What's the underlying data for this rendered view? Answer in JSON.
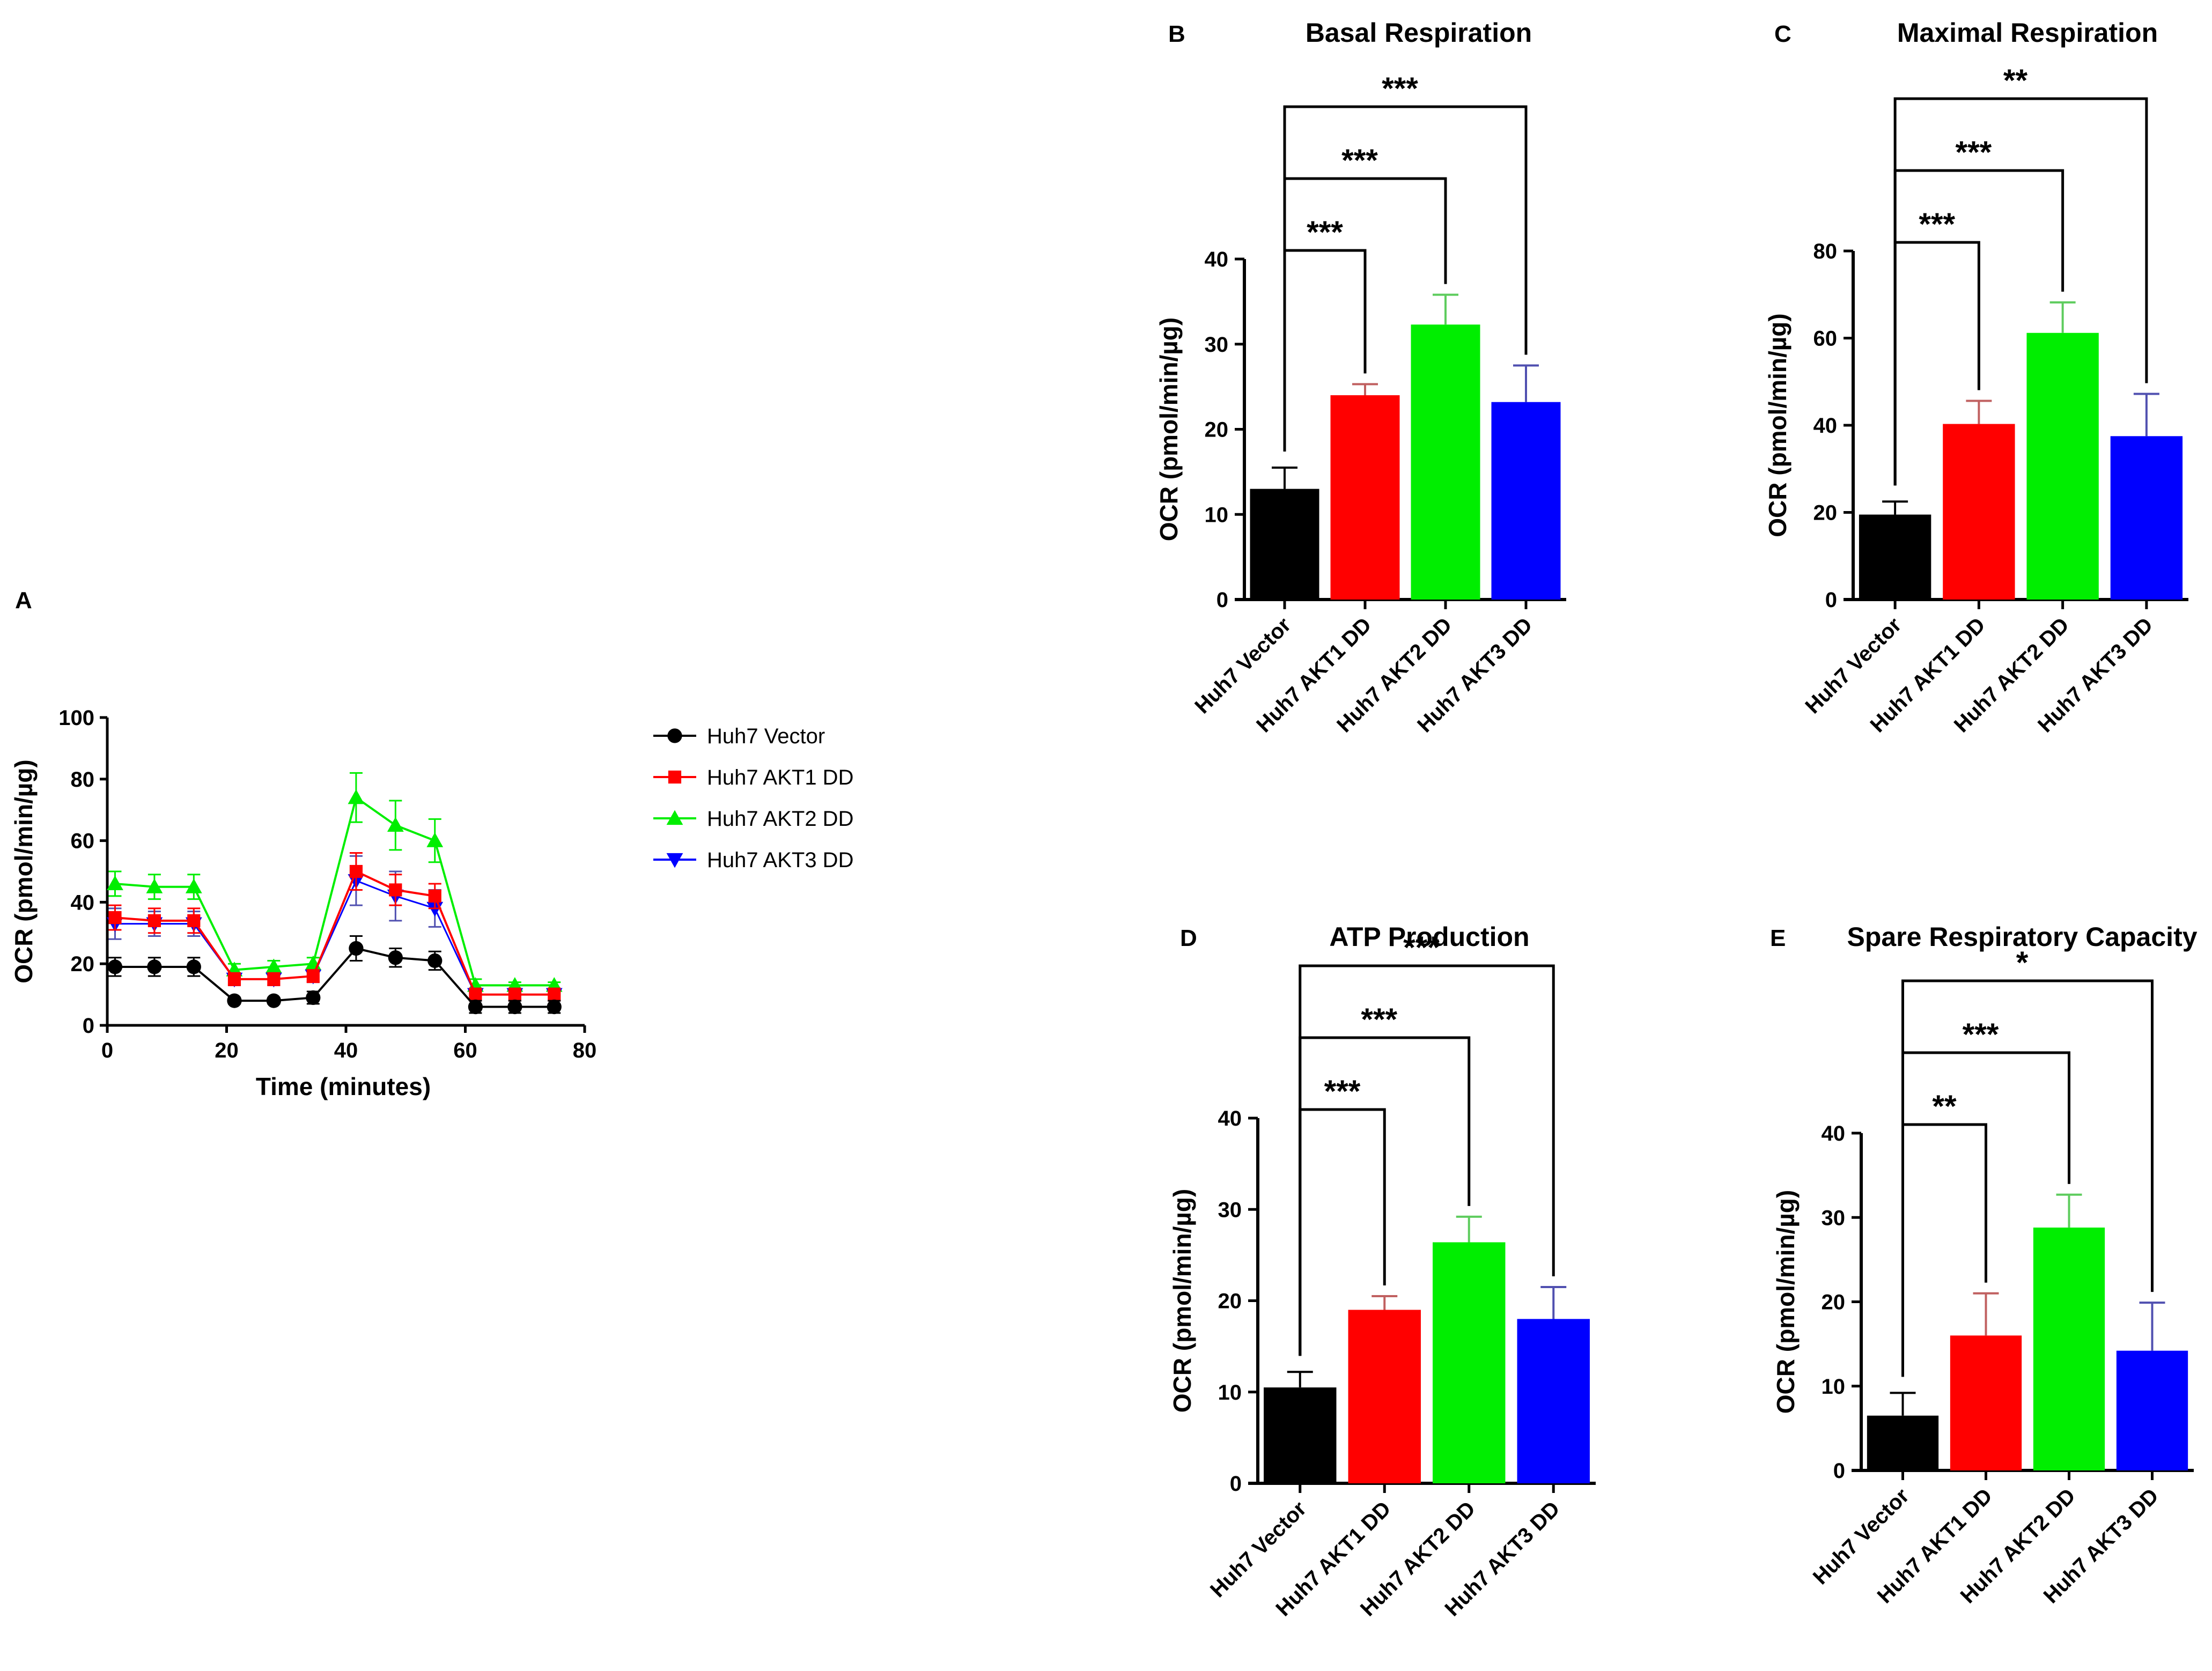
{
  "colors": {
    "vector": "#000000",
    "akt1": "#ff0000",
    "akt2": "#00ee00",
    "akt3": "#0000ff",
    "akt1_error": "#c06060",
    "akt2_error": "#5ecc5e",
    "akt3_error": "#5050b0"
  },
  "icons": {
    "vector": "circle-marker-icon",
    "akt1": "square-marker-icon",
    "akt2": "triangle-up-marker-icon",
    "akt3": "triangle-down-marker-icon"
  },
  "chart_data": [
    {
      "id": "A",
      "panel": "A",
      "type": "line",
      "title": "",
      "xlabel": "Time (minutes)",
      "ylabel": "OCR (pmol/min/µg)",
      "xlim": [
        0,
        80
      ],
      "ylim": [
        0,
        100
      ],
      "xticks": [
        0,
        20,
        40,
        60,
        80
      ],
      "yticks": [
        0,
        20,
        40,
        60,
        80,
        100
      ],
      "x": [
        1.3,
        7.9,
        14.5,
        21.3,
        27.9,
        34.5,
        41.7,
        48.3,
        54.9,
        61.7,
        68.3,
        74.9
      ],
      "series": [
        {
          "name": "Huh7 Vector",
          "color_key": "vector",
          "marker": "circle",
          "values": [
            19,
            19,
            19,
            8,
            8,
            9,
            25,
            22,
            21,
            6,
            6,
            6
          ],
          "errors": [
            3,
            3,
            3,
            1,
            1,
            2,
            4,
            3,
            3,
            2,
            2,
            2
          ]
        },
        {
          "name": "Huh7 AKT1 DD",
          "color_key": "akt1",
          "marker": "square",
          "values": [
            35,
            34,
            34,
            15,
            15,
            16,
            50,
            44,
            42,
            10,
            10,
            10
          ],
          "errors": [
            4,
            4,
            4,
            2,
            2,
            2,
            6,
            5,
            4,
            2,
            2,
            2
          ]
        },
        {
          "name": "Huh7 AKT2 DD",
          "color_key": "akt2",
          "marker": "triangle-up",
          "values": [
            46,
            45,
            45,
            18,
            19,
            20,
            74,
            65,
            60,
            13,
            13,
            13
          ],
          "errors": [
            4,
            4,
            4,
            2,
            2,
            2,
            8,
            8,
            7,
            2,
            1,
            1
          ]
        },
        {
          "name": "Huh7 AKT3 DD",
          "color_key": "akt3",
          "marker": "triangle-down",
          "values": [
            33,
            33,
            33,
            15,
            15,
            16,
            47,
            42,
            38,
            10,
            10,
            10
          ],
          "errors": [
            5,
            4,
            4,
            2,
            2,
            2,
            8,
            8,
            6,
            2,
            2,
            2
          ]
        }
      ],
      "legend": [
        "Huh7 Vector",
        "Huh7 AKT1 DD",
        "Huh7 AKT2 DD",
        "Huh7 AKT3 DD"
      ],
      "legend_position": "right",
      "grid": false
    },
    {
      "id": "B",
      "panel": "B",
      "type": "bar",
      "title": "Basal Respiration",
      "xlabel": "",
      "ylabel": "OCR (pmol/min/µg)",
      "ylim": [
        0,
        40
      ],
      "yticks": [
        0,
        10,
        20,
        30,
        40
      ],
      "categories": [
        "Huh7 Vector",
        "Huh7 AKT1 DD",
        "Huh7 AKT2 DD",
        "Huh7 AKT3 DD"
      ],
      "values": [
        13,
        24,
        32.3,
        23.2
      ],
      "errors": [
        2.5,
        1.3,
        3.5,
        4.3
      ],
      "significance": [
        {
          "from": 0,
          "to": 1,
          "label": "***"
        },
        {
          "from": 0,
          "to": 2,
          "label": "***"
        },
        {
          "from": 0,
          "to": 3,
          "label": "***"
        }
      ],
      "grid": false
    },
    {
      "id": "C",
      "panel": "C",
      "type": "bar",
      "title": "Maximal Respiration",
      "xlabel": "",
      "ylabel": "OCR (pmol/min/µg)",
      "ylim": [
        0,
        80
      ],
      "yticks": [
        0,
        20,
        40,
        60,
        80
      ],
      "categories": [
        "Huh7 Vector",
        "Huh7 AKT1 DD",
        "Huh7 AKT2 DD",
        "Huh7 AKT3 DD"
      ],
      "values": [
        19.5,
        40.3,
        61.2,
        37.5
      ],
      "errors": [
        3,
        5.3,
        7,
        9.7
      ],
      "significance": [
        {
          "from": 0,
          "to": 1,
          "label": "***"
        },
        {
          "from": 0,
          "to": 2,
          "label": "***"
        },
        {
          "from": 0,
          "to": 3,
          "label": "**"
        }
      ],
      "grid": false
    },
    {
      "id": "D",
      "panel": "D",
      "type": "bar",
      "title": "ATP Production",
      "xlabel": "",
      "ylabel": "OCR (pmol/min/µg)",
      "ylim": [
        0,
        40
      ],
      "yticks": [
        0,
        10,
        20,
        30,
        40
      ],
      "categories": [
        "Huh7 Vector",
        "Huh7 AKT1 DD",
        "Huh7 AKT2 DD",
        "Huh7 AKT3 DD"
      ],
      "values": [
        10.5,
        19,
        26.4,
        18
      ],
      "errors": [
        1.7,
        1.5,
        2.8,
        3.5
      ],
      "significance": [
        {
          "from": 0,
          "to": 1,
          "label": "***"
        },
        {
          "from": 0,
          "to": 2,
          "label": "***"
        },
        {
          "from": 0,
          "to": 3,
          "label": "***"
        }
      ],
      "grid": false
    },
    {
      "id": "E",
      "panel": "E",
      "type": "bar",
      "title": "Spare Respiratory Capacity",
      "xlabel": "",
      "ylabel": "OCR (pmol/min/µg)",
      "ylim": [
        0,
        40
      ],
      "yticks": [
        0,
        10,
        20,
        30,
        40
      ],
      "categories": [
        "Huh7 Vector",
        "Huh7 AKT1 DD",
        "Huh7 AKT2 DD",
        "Huh7 AKT3 DD"
      ],
      "values": [
        6.5,
        16,
        28.8,
        14.2
      ],
      "errors": [
        2.7,
        5,
        3.9,
        5.7
      ],
      "significance": [
        {
          "from": 0,
          "to": 1,
          "label": "**"
        },
        {
          "from": 0,
          "to": 2,
          "label": "***"
        },
        {
          "from": 0,
          "to": 3,
          "label": "*"
        }
      ],
      "grid": false
    }
  ]
}
